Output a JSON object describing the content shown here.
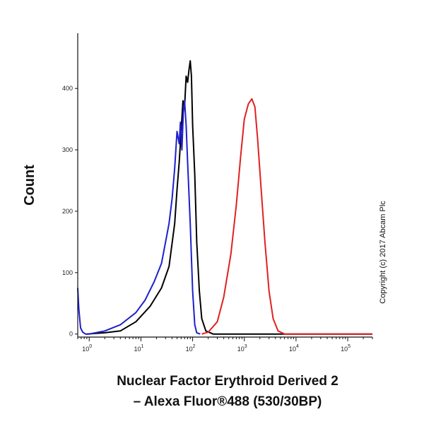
{
  "chart_data": {
    "type": "line",
    "title": "",
    "xlabel_line1": "Nuclear Factor Erythroid Derived 2",
    "xlabel_line2": "– Alexa Fluor®488 (530/30BP)",
    "ylabel": "Count",
    "x_scale": "log",
    "xlim": [
      0.6,
      300000
    ],
    "ylim": [
      -5,
      490
    ],
    "grid": false,
    "legend": "none",
    "x_ticks": [
      {
        "value": 1,
        "base": "10",
        "exp": "0"
      },
      {
        "value": 10,
        "base": "10",
        "exp": "1"
      },
      {
        "value": 100,
        "base": "10",
        "exp": "2"
      },
      {
        "value": 1000,
        "base": "10",
        "exp": "3"
      },
      {
        "value": 10000,
        "base": "10",
        "exp": "4"
      },
      {
        "value": 100000,
        "base": "10",
        "exp": "5"
      }
    ],
    "y_ticks": [
      0,
      100,
      200,
      300,
      400
    ],
    "annotation": "Copyright (c) 2017 Abcam Plc",
    "series": [
      {
        "color": "#000000",
        "x": [
          0.9,
          2.0,
          4.0,
          8.0,
          15.0,
          25.0,
          35.0,
          45.0,
          50.0,
          55.0,
          60.0,
          65.0,
          70.0,
          75.0,
          80.0,
          85.0,
          90.0,
          95.0,
          100.0,
          110.0,
          120.0,
          135.0,
          150.0,
          180.0,
          250.0,
          1000.0,
          300000.0
        ],
        "y": [
          0,
          2,
          5,
          20,
          45,
          75,
          110,
          180,
          235,
          280,
          330,
          380,
          370,
          420,
          410,
          430,
          445,
          420,
          340,
          260,
          150,
          70,
          25,
          5,
          0,
          0,
          0
        ]
      },
      {
        "color": "#1f1fcc",
        "x": [
          0.6,
          0.63,
          0.68,
          0.75,
          0.85,
          1.0,
          2.0,
          4.0,
          8.0,
          12.0,
          18.0,
          25.0,
          30.0,
          35.0,
          40.0,
          45.0,
          50.0,
          55.0,
          58.0,
          62.0,
          66.0,
          70.0,
          75.0,
          80.0,
          90.0,
          100.0,
          110.0,
          120.0,
          140.0
        ],
        "y": [
          75,
          40,
          10,
          3,
          0,
          0,
          5,
          15,
          35,
          55,
          85,
          115,
          150,
          180,
          220,
          270,
          330,
          310,
          345,
          300,
          360,
          380,
          340,
          280,
          180,
          70,
          15,
          2,
          0
        ]
      },
      {
        "color": "#e02020",
        "x": [
          150.0,
          200.0,
          300.0,
          400.0,
          550.0,
          700.0,
          850.0,
          1000.0,
          1200.0,
          1400.0,
          1600.0,
          1800.0,
          2100.0,
          2500.0,
          3000.0,
          3600.0,
          4500.0,
          6000.0,
          300000.0
        ],
        "y": [
          0,
          3,
          20,
          60,
          130,
          210,
          290,
          350,
          375,
          383,
          370,
          320,
          240,
          150,
          70,
          25,
          5,
          0,
          0
        ]
      }
    ]
  }
}
